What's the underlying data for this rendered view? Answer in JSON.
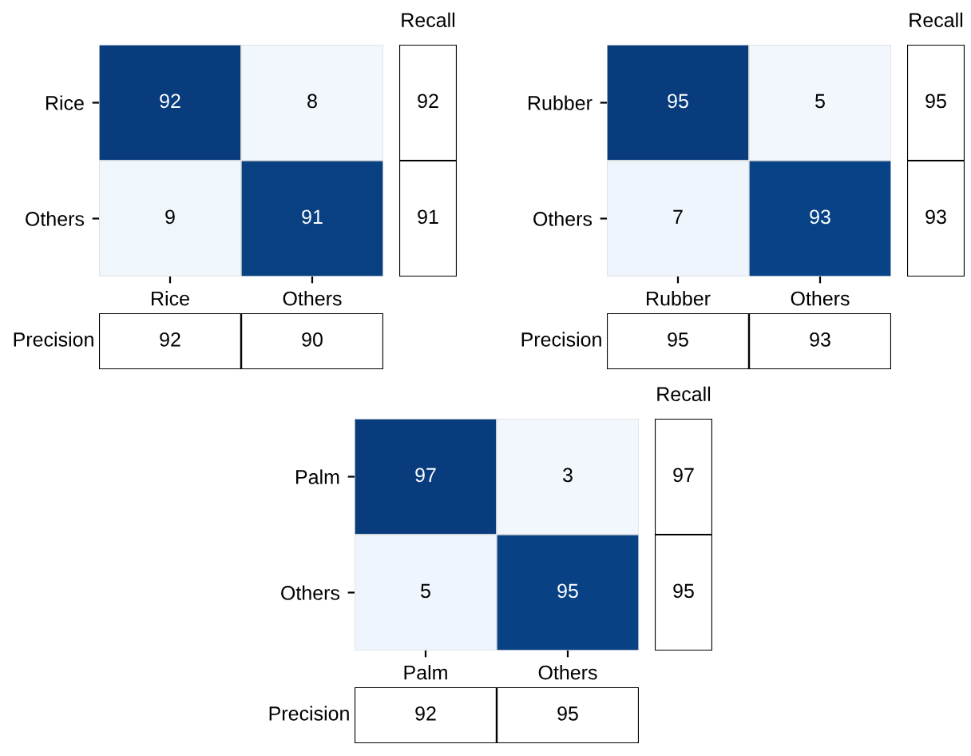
{
  "chart_data": [
    {
      "type": "heatmap",
      "categories": [
        "Rice",
        "Others"
      ],
      "y_categories": [
        "Rice",
        "Others"
      ],
      "cells": [
        [
          92,
          8
        ],
        [
          9,
          91
        ]
      ],
      "data_labels": true
    },
    {
      "type": "other",
      "title": "Recall",
      "annotations": [
        "92",
        "91"
      ]
    },
    {
      "type": "other",
      "ylabel": "Precision",
      "annotations": [
        "92",
        "90"
      ]
    },
    {
      "type": "heatmap",
      "categories": [
        "Rubber",
        "Others"
      ],
      "y_categories": [
        "Rubber",
        "Others"
      ],
      "cells": [
        [
          95,
          5
        ],
        [
          7,
          93
        ]
      ],
      "data_labels": true
    },
    {
      "type": "other",
      "title": "Recall",
      "annotations": [
        "95",
        "93"
      ]
    },
    {
      "type": "other",
      "ylabel": "Precision",
      "annotations": [
        "95",
        "93"
      ]
    },
    {
      "type": "heatmap",
      "categories": [
        "Palm",
        "Others"
      ],
      "y_categories": [
        "Palm",
        "Others"
      ],
      "cells": [
        [
          97,
          3
        ],
        [
          5,
          95
        ]
      ],
      "data_labels": true
    },
    {
      "type": "other",
      "title": "Recall",
      "annotations": [
        "97",
        "95"
      ]
    },
    {
      "type": "other",
      "ylabel": "Precision",
      "annotations": [
        "92",
        "95"
      ]
    }
  ]
}
